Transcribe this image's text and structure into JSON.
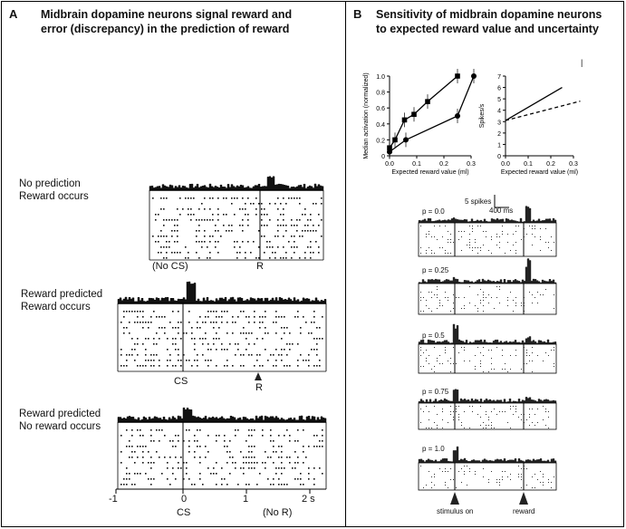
{
  "panel_a": {
    "letter": "A",
    "title_line1": "Midbrain dopamine neurons signal reward and",
    "title_line2": "error (discrepancy) in the prediction of reward",
    "conditions": [
      {
        "line1": "No prediction",
        "line2": "Reward occurs",
        "tick_labels": [
          "(No CS)",
          "R"
        ]
      },
      {
        "line1": "Reward predicted",
        "line2": "Reward occurs",
        "tick_labels": [
          "CS",
          "R"
        ]
      },
      {
        "line1": "Reward predicted",
        "line2": "No reward occurs",
        "tick_labels": []
      }
    ],
    "time_axis": [
      "-1",
      "0",
      "1",
      "2 s"
    ],
    "bottom_labels": [
      "CS",
      "(No R)"
    ]
  },
  "panel_b": {
    "letter": "B",
    "title_line1": "Sensitivity of midbrain dopamine neurons",
    "title_line2": "to expected reward value and uncertainty",
    "scale_spikes": "5 spikes",
    "scale_ms": "400 ms",
    "probabilities": [
      "p = 0.0",
      "p = 0.25",
      "p = 0.5",
      "p = 0.75",
      "p = 1.0"
    ],
    "event_labels": [
      "stimulus on",
      "reward"
    ],
    "tick_mark": "|"
  },
  "chart_data": [
    {
      "type": "line",
      "ylabel": "Median activation (normalized)",
      "xlabel": "Expected reward value (ml)",
      "xlim": [
        0,
        0.3
      ],
      "ylim": [
        0,
        1.0
      ],
      "x_ticks": [
        "0.0",
        "0.1",
        "0.2",
        "0.3"
      ],
      "y_ticks": [
        "0",
        "0.2",
        "0.4",
        "0.6",
        "0.8",
        "1.0"
      ],
      "series": [
        {
          "marker": "square",
          "x": [
            0.0,
            0.02,
            0.055,
            0.09,
            0.14,
            0.25
          ],
          "y": [
            0.1,
            0.2,
            0.45,
            0.52,
            0.68,
            1.0
          ]
        },
        {
          "marker": "circle",
          "x": [
            0.0,
            0.06,
            0.25,
            0.31
          ],
          "y": [
            0.05,
            0.2,
            0.5,
            1.0
          ]
        }
      ]
    },
    {
      "type": "line",
      "ylabel": "Spikes/s",
      "xlabel": "Expected reward value (ml)",
      "xlim": [
        0,
        0.3
      ],
      "ylim": [
        0,
        7
      ],
      "x_ticks": [
        "0.0",
        "0.1",
        "0.2",
        "0.3"
      ],
      "y_ticks": [
        "0",
        "1",
        "2",
        "3",
        "4",
        "5",
        "6",
        "7"
      ],
      "series": [
        {
          "style": "solid",
          "x": [
            0.0,
            0.25
          ],
          "y": [
            3.1,
            6.0
          ]
        },
        {
          "style": "dashed",
          "x": [
            0.0,
            0.33
          ],
          "y": [
            3.1,
            4.8
          ]
        }
      ]
    }
  ]
}
